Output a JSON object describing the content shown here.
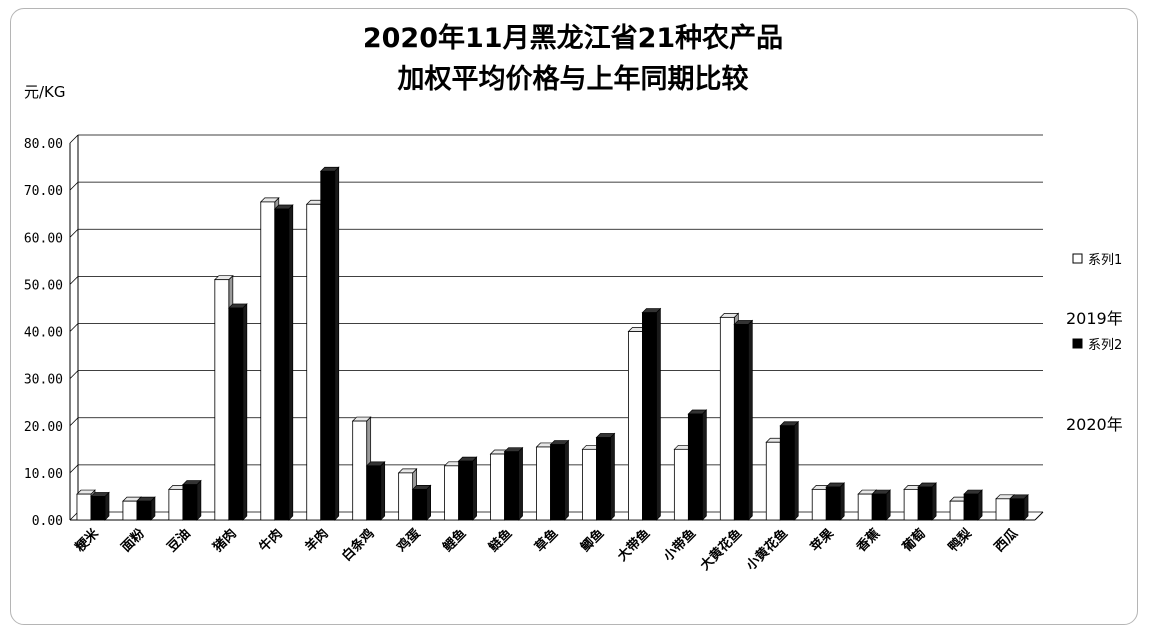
{
  "chart_data": {
    "type": "bar",
    "title_line1": "2020年11月黑龙江省21种农产品",
    "title_line2": "加权平均价格与上年同期比较",
    "ylabel": "元/KG",
    "ylim": [
      0,
      80
    ],
    "yticks": [
      "0.00",
      "10.00",
      "20.00",
      "30.00",
      "40.00",
      "50.00",
      "60.00",
      "70.00",
      "80.00"
    ],
    "grid": true,
    "legend_position": "right",
    "categories": [
      "粳米",
      "面粉",
      "豆油",
      "猪肉",
      "牛肉",
      "羊肉",
      "白条鸡",
      "鸡蛋",
      "鲤鱼",
      "鲢鱼",
      "草鱼",
      "鲫鱼",
      "大带鱼",
      "小带鱼",
      "大黄花鱼",
      "小黄花鱼",
      "苹果",
      "香蕉",
      "葡萄",
      "鸭梨",
      "西瓜"
    ],
    "series": [
      {
        "name": "系列1",
        "values": [
          5.5,
          4.0,
          6.5,
          51.0,
          67.5,
          67.0,
          21.0,
          10.0,
          11.5,
          14.0,
          15.5,
          15.0,
          40.0,
          15.0,
          43.0,
          16.5,
          6.5,
          5.5,
          6.5,
          4.0,
          4.5
        ]
      },
      {
        "name": "系列2",
        "values": [
          5.0,
          4.0,
          7.5,
          45.0,
          66.0,
          74.0,
          11.5,
          6.5,
          12.5,
          14.5,
          16.0,
          17.5,
          44.0,
          22.5,
          41.5,
          20.0,
          7.0,
          5.5,
          7.0,
          5.5,
          4.5
        ]
      }
    ],
    "annotations": [
      "2019年",
      "2020年"
    ]
  },
  "colors": {
    "series1": "#ffffff",
    "series2": "#000000",
    "grid": "#000000",
    "frame": "#b5b5b5"
  }
}
